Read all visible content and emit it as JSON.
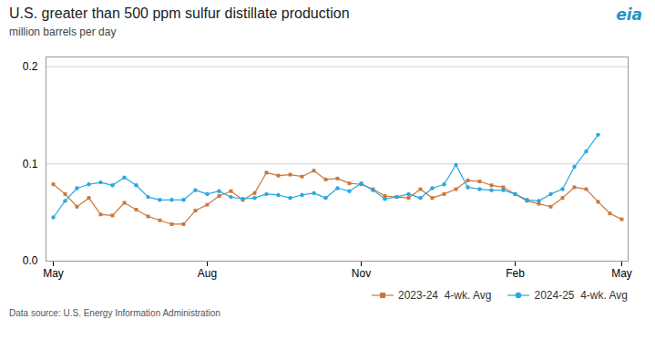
{
  "chart_data": {
    "type": "line",
    "title": "U.S. greater than 500 ppm sulfur  distillate production",
    "subtitle": "million barrels per day",
    "source": "Data source: U.S. Energy Information Administration",
    "annotation": "eia",
    "categories": [
      "May",
      null,
      null,
      null,
      null,
      null,
      null,
      null,
      null,
      null,
      null,
      null,
      null,
      "Aug",
      null,
      null,
      null,
      null,
      null,
      null,
      null,
      null,
      null,
      null,
      null,
      null,
      "Nov",
      null,
      null,
      null,
      null,
      null,
      null,
      null,
      null,
      null,
      null,
      null,
      null,
      "Feb",
      null,
      null,
      null,
      null,
      null,
      null,
      null,
      null,
      "May"
    ],
    "series": [
      {
        "name": "2023-24  4-wk. Avg",
        "color": "#C8783C",
        "marker": "square",
        "values": [
          0.079,
          0.069,
          0.056,
          0.065,
          0.048,
          0.047,
          0.06,
          0.053,
          0.046,
          0.042,
          0.038,
          0.038,
          0.052,
          0.058,
          0.067,
          0.072,
          0.063,
          0.07,
          0.091,
          0.088,
          0.089,
          0.087,
          0.093,
          0.084,
          0.085,
          0.08,
          0.079,
          0.074,
          0.067,
          0.066,
          0.065,
          0.074,
          0.065,
          0.069,
          0.074,
          0.083,
          0.082,
          0.078,
          0.076,
          0.069,
          0.062,
          0.059,
          0.056,
          0.065,
          0.076,
          0.074,
          0.061,
          0.049,
          0.043
        ]
      },
      {
        "name": "2024-25  4-wk. Avg",
        "color": "#29A8E0",
        "marker": "circle",
        "values": [
          0.045,
          0.062,
          0.075,
          0.079,
          0.081,
          0.078,
          0.086,
          0.078,
          0.066,
          0.063,
          0.063,
          0.063,
          0.073,
          0.069,
          0.072,
          0.066,
          0.064,
          0.065,
          0.069,
          0.068,
          0.065,
          0.068,
          0.07,
          0.065,
          0.075,
          0.072,
          0.08,
          0.073,
          0.064,
          0.066,
          0.069,
          0.065,
          0.075,
          0.079,
          0.099,
          0.076,
          0.074,
          0.073,
          0.073,
          0.069,
          0.063,
          0.062,
          0.069,
          0.074,
          0.097,
          0.113,
          0.13,
          null,
          null
        ]
      }
    ],
    "ylim": [
      0.0,
      0.21
    ],
    "yticks": [
      {
        "value": 0.0,
        "label": "0.0"
      },
      0.1,
      0.2
    ],
    "grid": true,
    "legend": "lower right"
  }
}
